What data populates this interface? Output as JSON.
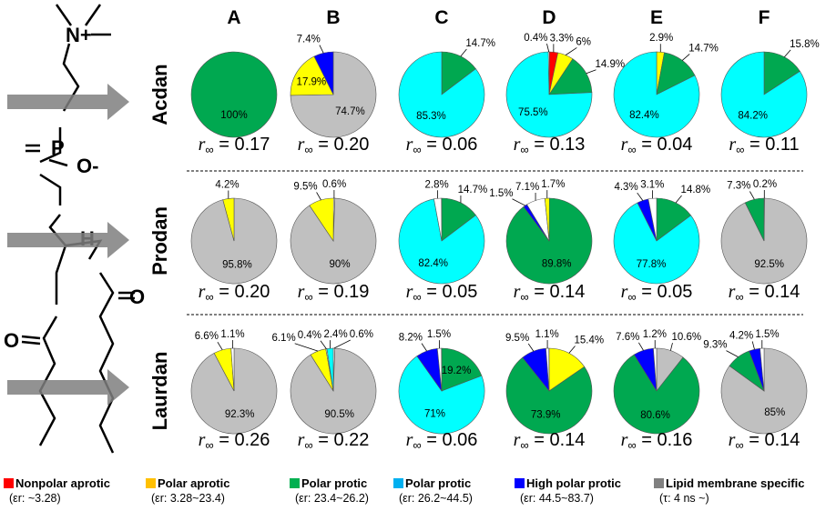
{
  "chart_data": {
    "type": "pie",
    "columns": [
      "A",
      "B",
      "C",
      "D",
      "E",
      "F"
    ],
    "rows": [
      "Acdan",
      "Prodan",
      "Laurdan"
    ],
    "r_inf_prefix": "r",
    "r_inf_symbol": "∞",
    "colors": {
      "nonpolar_aprotic": "#ff0000",
      "polar_aprotic": "#ffff00",
      "polar_protic_23": "#00a850",
      "polar_protic_26": "#00ffff",
      "high_polar_protic": "#0000ff",
      "lipid": "#c0c0c0",
      "other": "#ffffff"
    },
    "pies": [
      [
        {
          "r_inf": "0.17",
          "slices": [
            {
              "c": "polar_protic_23",
              "v": 100
            }
          ]
        },
        {
          "r_inf": "0.20",
          "slices": [
            {
              "c": "lipid",
              "v": 74.7
            },
            {
              "c": "polar_aprotic",
              "v": 17.9
            },
            {
              "c": "high_polar_protic",
              "v": 7.4
            }
          ]
        },
        {
          "r_inf": "0.06",
          "slices": [
            {
              "c": "polar_protic_23",
              "v": 14.7
            },
            {
              "c": "polar_protic_26",
              "v": 85.3
            }
          ]
        },
        {
          "r_inf": "0.13",
          "slices": [
            {
              "c": "nonpolar_aprotic",
              "v": 3.3
            },
            {
              "c": "polar_aprotic",
              "v": 6
            },
            {
              "c": "polar_protic_23",
              "v": 14.9
            },
            {
              "c": "polar_protic_26",
              "v": 75.5
            },
            {
              "c": "other",
              "v": 0.4
            }
          ]
        },
        {
          "r_inf": "0.04",
          "slices": [
            {
              "c": "polar_aprotic",
              "v": 2.9
            },
            {
              "c": "polar_protic_23",
              "v": 14.7
            },
            {
              "c": "polar_protic_26",
              "v": 82.4
            }
          ]
        },
        {
          "r_inf": "0.11",
          "slices": [
            {
              "c": "polar_protic_23",
              "v": 15.8
            },
            {
              "c": "polar_protic_26",
              "v": 84.2
            }
          ]
        }
      ],
      [
        {
          "r_inf": "0.20",
          "slices": [
            {
              "c": "lipid",
              "v": 95.8
            },
            {
              "c": "polar_aprotic",
              "v": 4.2
            }
          ]
        },
        {
          "r_inf": "0.19",
          "slices": [
            {
              "c": "other",
              "v": 0.6
            },
            {
              "c": "lipid",
              "v": 90
            },
            {
              "c": "polar_aprotic",
              "v": 9.5
            }
          ]
        },
        {
          "r_inf": "0.05",
          "slices": [
            {
              "c": "polar_protic_23",
              "v": 14.7
            },
            {
              "c": "polar_protic_26",
              "v": 82.4
            },
            {
              "c": "other",
              "v": 2.8
            }
          ]
        },
        {
          "r_inf": "0.14",
          "slices": [
            {
              "c": "polar_protic_23",
              "v": 89.8
            },
            {
              "c": "high_polar_protic",
              "v": 1.5
            },
            {
              "c": "other",
              "v": 7.1
            },
            {
              "c": "polar_aprotic",
              "v": 1.7
            }
          ]
        },
        {
          "r_inf": "0.05",
          "slices": [
            {
              "c": "polar_protic_23",
              "v": 14.8
            },
            {
              "c": "polar_protic_26",
              "v": 77.8
            },
            {
              "c": "high_polar_protic",
              "v": 4.3
            },
            {
              "c": "other",
              "v": 3.1
            }
          ]
        },
        {
          "r_inf": "0.14",
          "slices": [
            {
              "c": "other",
              "v": 0.2
            },
            {
              "c": "lipid",
              "v": 92.5
            },
            {
              "c": "polar_protic_23",
              "v": 7.3
            }
          ]
        }
      ],
      [
        {
          "r_inf": "0.26",
          "slices": [
            {
              "c": "lipid",
              "v": 92.3
            },
            {
              "c": "polar_aprotic",
              "v": 6.6
            },
            {
              "c": "other",
              "v": 1.1
            }
          ]
        },
        {
          "r_inf": "0.22",
          "slices": [
            {
              "c": "other",
              "v": 0.6
            },
            {
              "c": "lipid",
              "v": 90.5
            },
            {
              "c": "polar_aprotic",
              "v": 6.1
            },
            {
              "c": "other",
              "v": 0.4
            },
            {
              "c": "polar_protic_26",
              "v": 2.4
            }
          ]
        },
        {
          "r_inf": "0.06",
          "slices": [
            {
              "c": "polar_protic_23",
              "v": 19.2
            },
            {
              "c": "polar_protic_26",
              "v": 71
            },
            {
              "c": "high_polar_protic",
              "v": 8.2
            },
            {
              "c": "other",
              "v": 1.5
            }
          ]
        },
        {
          "r_inf": "0.14",
          "slices": [
            {
              "c": "polar_aprotic",
              "v": 15.4
            },
            {
              "c": "polar_protic_23",
              "v": 73.9
            },
            {
              "c": "high_polar_protic",
              "v": 9.5
            },
            {
              "c": "other",
              "v": 1.1
            }
          ]
        },
        {
          "r_inf": "0.16",
          "slices": [
            {
              "c": "lipid",
              "v": 10.6
            },
            {
              "c": "polar_protic_23",
              "v": 80.6
            },
            {
              "c": "high_polar_protic",
              "v": 7.6
            },
            {
              "c": "other",
              "v": 1.2
            }
          ]
        },
        {
          "r_inf": "0.14",
          "slices": [
            {
              "c": "lipid",
              "v": 85
            },
            {
              "c": "polar_protic_23",
              "v": 9.3
            },
            {
              "c": "high_polar_protic",
              "v": 4.2
            },
            {
              "c": "other",
              "v": 1.5
            }
          ]
        }
      ]
    ],
    "legend": [
      {
        "label": "Nonpolar aprotic",
        "range": "(εr: ~3.28)",
        "color": "#ff0000"
      },
      {
        "label": "Polar aprotic",
        "range": "(εr: 3.28~23.4)",
        "color": "#ffc000"
      },
      {
        "label": "Polar protic",
        "range": "(εr: 23.4~26.2)",
        "color": "#00b050"
      },
      {
        "label": "Polar protic",
        "range": "(εr: 26.2~44.5)",
        "color": "#00b0f0"
      },
      {
        "label": "High polar protic",
        "range": "(εr: 44.5~83.7)",
        "color": "#0000ff"
      },
      {
        "label": "Lipid membrane specific",
        "range": "(τ: 4 ns ~)",
        "color": "#808080"
      }
    ]
  },
  "molecule": {
    "n_plus": "N+",
    "p": "P",
    "o_minus": "O-",
    "h": "H",
    "o": "O"
  }
}
